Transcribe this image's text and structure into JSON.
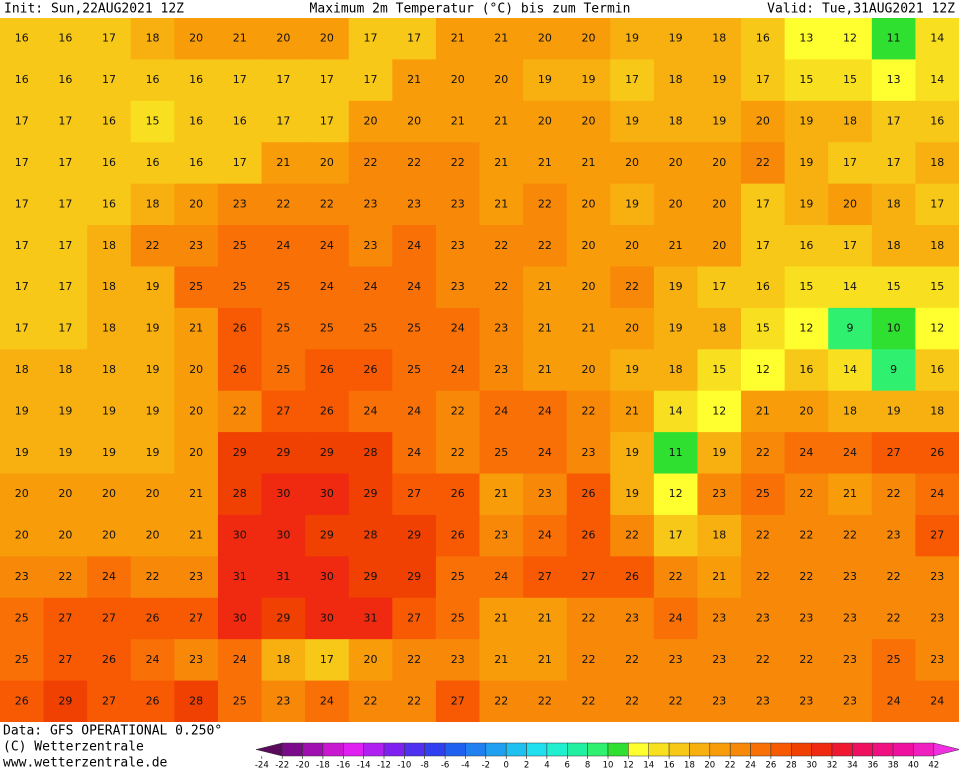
{
  "header": {
    "init": "Init: Sun,22AUG2021 12Z",
    "title": "Maximum 2m Temperatur (°C) bis zum Termin",
    "valid": "Valid: Tue,31AUG2021 12Z"
  },
  "map": {
    "type": "heatmap",
    "values": [
      [
        16,
        16,
        17,
        18,
        20,
        21,
        20,
        20,
        17,
        17,
        21,
        21,
        20,
        20,
        19,
        19,
        18,
        16,
        13,
        12,
        11,
        14
      ],
      [
        16,
        16,
        17,
        16,
        16,
        17,
        17,
        17,
        17,
        21,
        20,
        20,
        19,
        19,
        17,
        18,
        19,
        17,
        15,
        15,
        13,
        14
      ],
      [
        17,
        17,
        16,
        15,
        16,
        16,
        17,
        17,
        20,
        20,
        21,
        21,
        20,
        20,
        19,
        18,
        19,
        20,
        19,
        18,
        17,
        16
      ],
      [
        17,
        17,
        16,
        16,
        16,
        17,
        21,
        20,
        22,
        22,
        22,
        21,
        21,
        21,
        20,
        20,
        20,
        22,
        19,
        17,
        17,
        18
      ],
      [
        17,
        17,
        16,
        18,
        20,
        23,
        22,
        22,
        23,
        23,
        23,
        21,
        22,
        20,
        19,
        20,
        20,
        17,
        19,
        20,
        18,
        17
      ],
      [
        17,
        17,
        18,
        22,
        23,
        25,
        24,
        24,
        23,
        24,
        23,
        22,
        22,
        20,
        20,
        21,
        20,
        17,
        16,
        17,
        18,
        18
      ],
      [
        17,
        17,
        18,
        19,
        25,
        25,
        25,
        24,
        24,
        24,
        23,
        22,
        21,
        20,
        22,
        19,
        17,
        16,
        15,
        14,
        15,
        15
      ],
      [
        17,
        17,
        18,
        19,
        21,
        26,
        25,
        25,
        25,
        25,
        24,
        23,
        21,
        21,
        20,
        19,
        18,
        15,
        12,
        9,
        10,
        12
      ],
      [
        18,
        18,
        18,
        19,
        20,
        26,
        25,
        26,
        26,
        25,
        24,
        23,
        21,
        20,
        19,
        18,
        15,
        12,
        16,
        14,
        9,
        16
      ],
      [
        19,
        19,
        19,
        19,
        20,
        22,
        27,
        26,
        24,
        24,
        22,
        24,
        24,
        22,
        21,
        14,
        12,
        21,
        20,
        18,
        19,
        18
      ],
      [
        19,
        19,
        19,
        19,
        20,
        29,
        29,
        29,
        28,
        24,
        22,
        25,
        24,
        23,
        19,
        11,
        19,
        22,
        24,
        24,
        27,
        26
      ],
      [
        20,
        20,
        20,
        20,
        21,
        28,
        30,
        30,
        29,
        27,
        26,
        21,
        23,
        26,
        19,
        12,
        23,
        25,
        22,
        21,
        22,
        24
      ],
      [
        20,
        20,
        20,
        20,
        21,
        30,
        30,
        29,
        28,
        29,
        26,
        23,
        24,
        26,
        22,
        17,
        18,
        22,
        22,
        22,
        23,
        27
      ],
      [
        23,
        22,
        24,
        22,
        23,
        31,
        31,
        30,
        29,
        29,
        25,
        24,
        27,
        27,
        26,
        22,
        21,
        22,
        22,
        23,
        22,
        23
      ],
      [
        25,
        27,
        27,
        26,
        27,
        30,
        29,
        30,
        31,
        27,
        25,
        21,
        21,
        22,
        23,
        24,
        23,
        23,
        23,
        23,
        22,
        23
      ],
      [
        25,
        27,
        26,
        24,
        23,
        24,
        18,
        17,
        20,
        22,
        23,
        21,
        21,
        22,
        22,
        23,
        23,
        22,
        22,
        23,
        25,
        23
      ],
      [
        26,
        29,
        27,
        26,
        28,
        25,
        23,
        24,
        22,
        22,
        27,
        22,
        22,
        22,
        22,
        22,
        23,
        23,
        23,
        23,
        24,
        24
      ]
    ],
    "colorbar": {
      "ticks": [
        -24,
        -22,
        -20,
        -18,
        -16,
        -14,
        -12,
        -10,
        -8,
        -6,
        -4,
        -2,
        0,
        2,
        4,
        6,
        8,
        10,
        12,
        14,
        16,
        18,
        20,
        22,
        24,
        26,
        28,
        30,
        32,
        34,
        36,
        38,
        40,
        42
      ],
      "colors": [
        "#5a0a5a",
        "#7a0a8a",
        "#a010b0",
        "#c818d0",
        "#e020f0",
        "#b020f0",
        "#8020f0",
        "#5030f0",
        "#3040f0",
        "#2060f0",
        "#2080f0",
        "#20a0f0",
        "#20c0f0",
        "#20e0f0",
        "#20f0d0",
        "#20f0a0",
        "#30f070",
        "#30e030",
        "#ffff30",
        "#f8e020",
        "#f8c818",
        "#f8b010",
        "#f89c0a",
        "#f88808",
        "#f87006",
        "#f85a04",
        "#f04002",
        "#f02a10",
        "#f01830",
        "#f01060",
        "#f01080",
        "#f010a0",
        "#f020c0",
        "#f030e0"
      ]
    }
  },
  "footer": {
    "data": "Data: GFS OPERATIONAL 0.250°",
    "copyright": "(C) Wetterzentrale",
    "url": "www.wetterzentrale.de"
  }
}
